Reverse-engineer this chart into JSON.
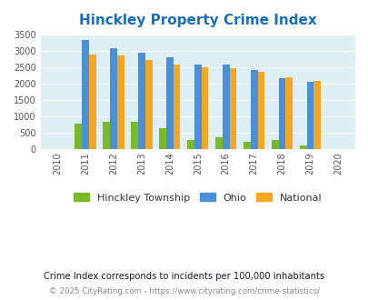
{
  "title": "Hinckley Property Crime Index",
  "all_years": [
    2010,
    2011,
    2012,
    2013,
    2014,
    2015,
    2016,
    2017,
    2018,
    2019,
    2020
  ],
  "data_years": [
    2011,
    2012,
    2013,
    2014,
    2015,
    2016,
    2017,
    2018,
    2019
  ],
  "hinckley": [
    790,
    840,
    840,
    640,
    290,
    360,
    230,
    295,
    130
  ],
  "ohio": [
    3350,
    3100,
    2940,
    2800,
    2600,
    2580,
    2430,
    2170,
    2050
  ],
  "national": [
    2900,
    2860,
    2720,
    2600,
    2500,
    2480,
    2380,
    2200,
    2100
  ],
  "hinckley_color": "#7aba28",
  "ohio_color": "#4b8fd5",
  "national_color": "#f5a623",
  "bg_color": "#ddeef5",
  "ylim": [
    0,
    3500
  ],
  "yticks": [
    0,
    500,
    1000,
    1500,
    2000,
    2500,
    3000,
    3500
  ],
  "title_color": "#1a6fbb",
  "legend_labels": [
    "Hinckley Township",
    "Ohio",
    "National"
  ],
  "subtitle": "Crime Index corresponds to incidents per 100,000 inhabitants",
  "footer": "© 2025 CityRating.com - https://www.cityrating.com/crime-statistics/",
  "subtitle_color": "#1a1a2e",
  "footer_color": "#888888"
}
